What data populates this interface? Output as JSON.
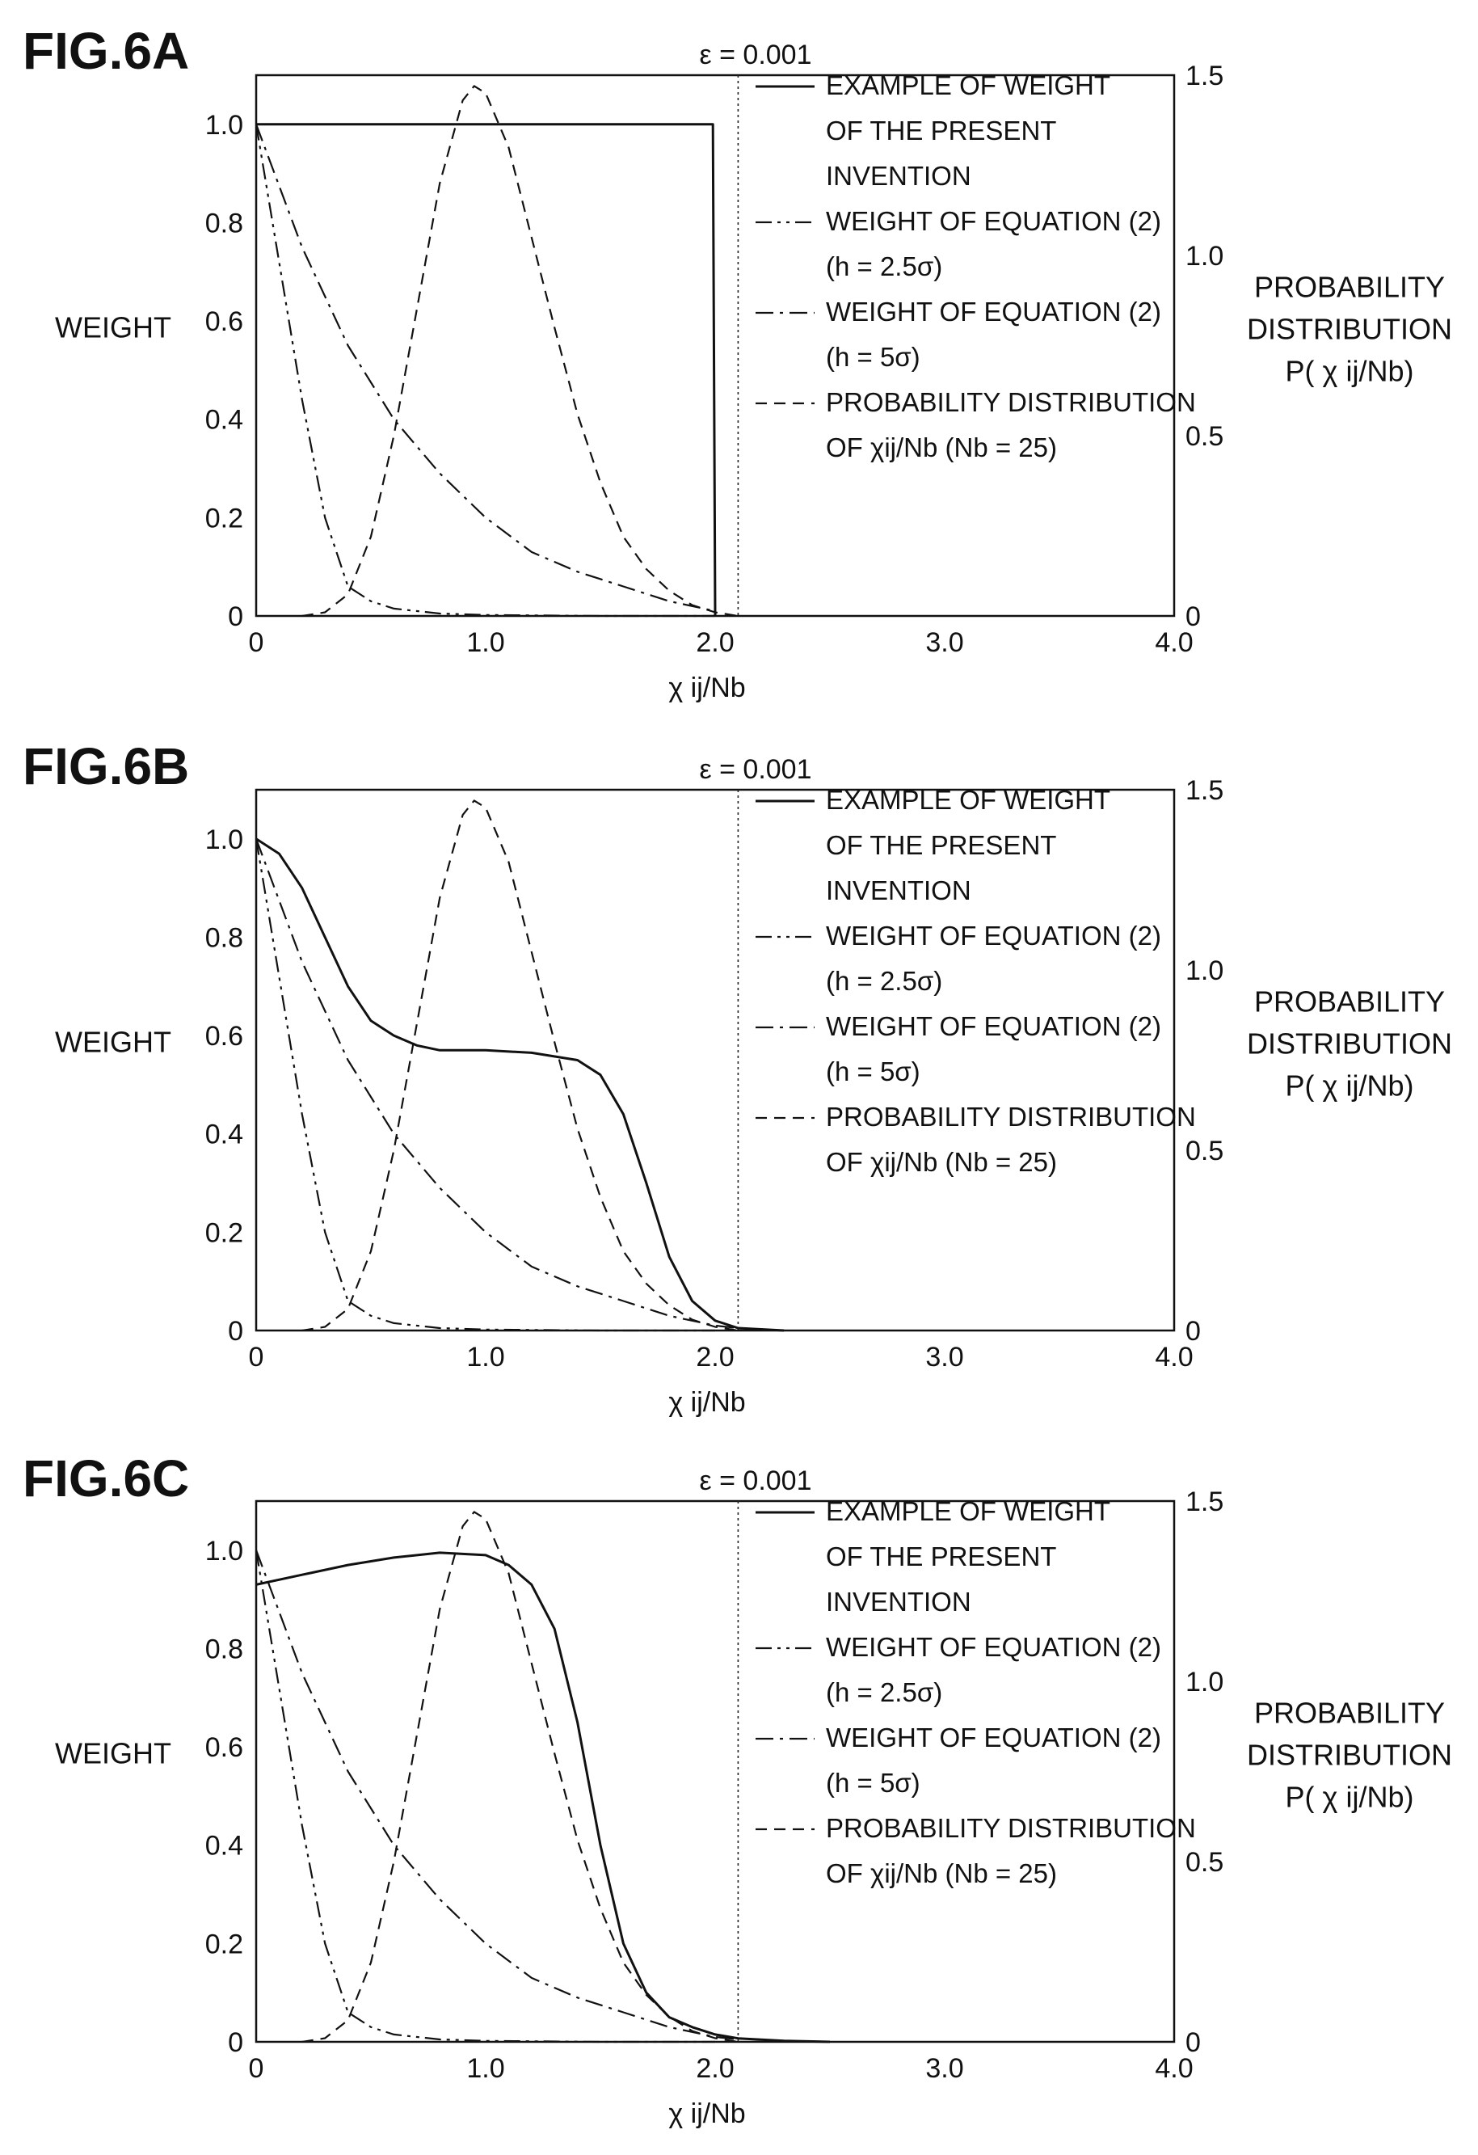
{
  "chart_data": [
    {
      "type": "line",
      "figure_label": "FIG.6A",
      "title": "ε = 0.001",
      "xlabel": "χ ij/Nb",
      "ylabel": "WEIGHT",
      "y2label": [
        "PROBABILITY",
        "DISTRIBUTION",
        "P( χ ij/Nb)"
      ],
      "xlim": [
        0,
        4.0
      ],
      "ylim": [
        0,
        1.1
      ],
      "y2lim": [
        0,
        1.5
      ],
      "xticks": [
        "0",
        "1.0",
        "2.0",
        "3.0",
        "4.0"
      ],
      "yticks": [
        "0",
        "0.2",
        "0.4",
        "0.6",
        "0.8",
        "1.0"
      ],
      "y2ticks": [
        "0",
        "0.5",
        "1.0",
        "1.5"
      ],
      "vline_x": 2.1,
      "legend": [
        {
          "lines": [
            "EXAMPLE OF WEIGHT",
            "OF THE PRESENT",
            "INVENTION"
          ],
          "style": "solid"
        },
        {
          "lines": [
            "WEIGHT OF EQUATION (2)",
            "(h = 2.5σ)"
          ],
          "style": "dashdotdot"
        },
        {
          "lines": [
            "WEIGHT OF EQUATION (2)",
            "(h = 5σ)"
          ],
          "style": "dashdot"
        },
        {
          "lines": [
            "PROBABILITY DISTRIBUTION",
            "OF χij/Nb (Nb = 25)"
          ],
          "style": "dashed"
        }
      ],
      "series": [
        {
          "style": "solid",
          "axis": "left",
          "x": [
            0,
            0.01,
            1.0,
            1.99,
            2.0
          ],
          "values": [
            1.0,
            1.0,
            1.0,
            1.0,
            0.0
          ]
        },
        {
          "style": "dashdotdot",
          "axis": "left",
          "x": [
            0,
            0.1,
            0.2,
            0.3,
            0.4,
            0.5,
            0.6,
            0.8,
            1.0,
            1.5,
            2.0
          ],
          "values": [
            1.0,
            0.72,
            0.44,
            0.2,
            0.06,
            0.03,
            0.015,
            0.005,
            0.002,
            0.0,
            0.0
          ]
        },
        {
          "style": "dashdot",
          "axis": "left",
          "x": [
            0,
            0.2,
            0.4,
            0.6,
            0.8,
            1.0,
            1.2,
            1.4,
            1.6,
            1.8,
            2.0
          ],
          "values": [
            1.0,
            0.75,
            0.55,
            0.4,
            0.29,
            0.2,
            0.13,
            0.09,
            0.06,
            0.03,
            0.01
          ]
        },
        {
          "style": "dashed",
          "axis": "right",
          "x": [
            0.2,
            0.3,
            0.4,
            0.5,
            0.6,
            0.7,
            0.8,
            0.9,
            0.95,
            1.0,
            1.1,
            1.2,
            1.3,
            1.4,
            1.5,
            1.6,
            1.7,
            1.8,
            1.9,
            2.0,
            2.1
          ],
          "values": [
            0.0,
            0.01,
            0.06,
            0.22,
            0.5,
            0.85,
            1.2,
            1.43,
            1.47,
            1.45,
            1.3,
            1.05,
            0.8,
            0.56,
            0.37,
            0.22,
            0.13,
            0.07,
            0.03,
            0.01,
            0.0
          ]
        }
      ]
    },
    {
      "type": "line",
      "figure_label": "FIG.6B",
      "title": "ε = 0.001",
      "xlabel": "χ ij/Nb",
      "ylabel": "WEIGHT",
      "y2label": [
        "PROBABILITY",
        "DISTRIBUTION",
        "P( χ ij/Nb)"
      ],
      "xlim": [
        0,
        4.0
      ],
      "ylim": [
        0,
        1.1
      ],
      "y2lim": [
        0,
        1.5
      ],
      "xticks": [
        "0",
        "1.0",
        "2.0",
        "3.0",
        "4.0"
      ],
      "yticks": [
        "0",
        "0.2",
        "0.4",
        "0.6",
        "0.8",
        "1.0"
      ],
      "y2ticks": [
        "0",
        "0.5",
        "1.0",
        "1.5"
      ],
      "vline_x": 2.1,
      "legend": [
        {
          "lines": [
            "EXAMPLE OF WEIGHT",
            "OF THE PRESENT",
            "INVENTION"
          ],
          "style": "solid"
        },
        {
          "lines": [
            "WEIGHT OF EQUATION (2)",
            "(h = 2.5σ)"
          ],
          "style": "dashdotdot"
        },
        {
          "lines": [
            "WEIGHT OF EQUATION (2)",
            "(h = 5σ)"
          ],
          "style": "dashdot"
        },
        {
          "lines": [
            "PROBABILITY DISTRIBUTION",
            "OF χij/Nb (Nb = 25)"
          ],
          "style": "dashed"
        }
      ],
      "series": [
        {
          "style": "solid",
          "axis": "left",
          "x": [
            0,
            0.1,
            0.2,
            0.3,
            0.4,
            0.5,
            0.6,
            0.7,
            0.8,
            0.9,
            1.0,
            1.2,
            1.4,
            1.5,
            1.6,
            1.7,
            1.8,
            1.9,
            2.0,
            2.1,
            2.3
          ],
          "values": [
            1.0,
            0.97,
            0.9,
            0.8,
            0.7,
            0.63,
            0.6,
            0.58,
            0.57,
            0.57,
            0.57,
            0.565,
            0.55,
            0.52,
            0.44,
            0.3,
            0.15,
            0.06,
            0.02,
            0.005,
            0.0
          ]
        },
        {
          "style": "dashdotdot",
          "axis": "left",
          "x": [
            0,
            0.1,
            0.2,
            0.3,
            0.4,
            0.5,
            0.6,
            0.8,
            1.0,
            1.5,
            2.0
          ],
          "values": [
            1.0,
            0.72,
            0.44,
            0.2,
            0.06,
            0.03,
            0.015,
            0.005,
            0.002,
            0.0,
            0.0
          ]
        },
        {
          "style": "dashdot",
          "axis": "left",
          "x": [
            0,
            0.2,
            0.4,
            0.6,
            0.8,
            1.0,
            1.2,
            1.4,
            1.6,
            1.8,
            2.0,
            2.1
          ],
          "values": [
            1.0,
            0.75,
            0.55,
            0.4,
            0.29,
            0.2,
            0.13,
            0.09,
            0.06,
            0.03,
            0.01,
            0.005
          ]
        },
        {
          "style": "dashed",
          "axis": "right",
          "x": [
            0.2,
            0.3,
            0.4,
            0.5,
            0.6,
            0.7,
            0.8,
            0.9,
            0.95,
            1.0,
            1.1,
            1.2,
            1.3,
            1.4,
            1.5,
            1.6,
            1.7,
            1.8,
            1.9,
            2.0,
            2.1
          ],
          "values": [
            0.0,
            0.01,
            0.06,
            0.22,
            0.5,
            0.85,
            1.2,
            1.43,
            1.47,
            1.45,
            1.3,
            1.05,
            0.8,
            0.56,
            0.37,
            0.22,
            0.13,
            0.07,
            0.03,
            0.01,
            0.0
          ]
        }
      ]
    },
    {
      "type": "line",
      "figure_label": "FIG.6C",
      "title": "ε = 0.001",
      "xlabel": "χ ij/Nb",
      "ylabel": "WEIGHT",
      "y2label": [
        "PROBABILITY",
        "DISTRIBUTION",
        "P( χ ij/Nb)"
      ],
      "xlim": [
        0,
        4.0
      ],
      "ylim": [
        0,
        1.1
      ],
      "y2lim": [
        0,
        1.5
      ],
      "xticks": [
        "0",
        "1.0",
        "2.0",
        "3.0",
        "4.0"
      ],
      "yticks": [
        "0",
        "0.2",
        "0.4",
        "0.6",
        "0.8",
        "1.0"
      ],
      "y2ticks": [
        "0",
        "0.5",
        "1.0",
        "1.5"
      ],
      "vline_x": 2.1,
      "legend": [
        {
          "lines": [
            "EXAMPLE OF WEIGHT",
            "OF THE PRESENT",
            "INVENTION"
          ],
          "style": "solid"
        },
        {
          "lines": [
            "WEIGHT OF EQUATION (2)",
            "(h = 2.5σ)"
          ],
          "style": "dashdotdot"
        },
        {
          "lines": [
            "WEIGHT OF EQUATION (2)",
            "(h = 5σ)"
          ],
          "style": "dashdot"
        },
        {
          "lines": [
            "PROBABILITY DISTRIBUTION",
            "OF χij/Nb (Nb = 25)"
          ],
          "style": "dashed"
        }
      ],
      "series": [
        {
          "style": "solid",
          "axis": "left",
          "x": [
            0,
            0.2,
            0.4,
            0.6,
            0.8,
            1.0,
            1.1,
            1.2,
            1.3,
            1.4,
            1.5,
            1.6,
            1.7,
            1.8,
            1.9,
            2.0,
            2.1,
            2.3,
            2.5
          ],
          "values": [
            0.93,
            0.95,
            0.97,
            0.985,
            0.995,
            0.99,
            0.97,
            0.93,
            0.84,
            0.65,
            0.4,
            0.2,
            0.1,
            0.05,
            0.03,
            0.015,
            0.007,
            0.002,
            0.0
          ]
        },
        {
          "style": "dashdotdot",
          "axis": "left",
          "x": [
            0,
            0.1,
            0.2,
            0.3,
            0.4,
            0.5,
            0.6,
            0.8,
            1.0,
            1.5,
            2.0
          ],
          "values": [
            1.0,
            0.72,
            0.44,
            0.2,
            0.06,
            0.03,
            0.015,
            0.005,
            0.002,
            0.0,
            0.0
          ]
        },
        {
          "style": "dashdot",
          "axis": "left",
          "x": [
            0,
            0.2,
            0.4,
            0.6,
            0.8,
            1.0,
            1.2,
            1.4,
            1.6,
            1.8,
            2.0,
            2.1
          ],
          "values": [
            1.0,
            0.75,
            0.55,
            0.4,
            0.29,
            0.2,
            0.13,
            0.09,
            0.06,
            0.03,
            0.01,
            0.005
          ]
        },
        {
          "style": "dashed",
          "axis": "right",
          "x": [
            0.2,
            0.3,
            0.4,
            0.5,
            0.6,
            0.7,
            0.8,
            0.9,
            0.95,
            1.0,
            1.1,
            1.2,
            1.3,
            1.4,
            1.5,
            1.6,
            1.7,
            1.8,
            1.9,
            2.0,
            2.1
          ],
          "values": [
            0.0,
            0.01,
            0.06,
            0.22,
            0.5,
            0.85,
            1.2,
            1.43,
            1.47,
            1.45,
            1.3,
            1.05,
            0.8,
            0.56,
            0.37,
            0.22,
            0.13,
            0.07,
            0.03,
            0.01,
            0.0
          ]
        }
      ]
    }
  ]
}
